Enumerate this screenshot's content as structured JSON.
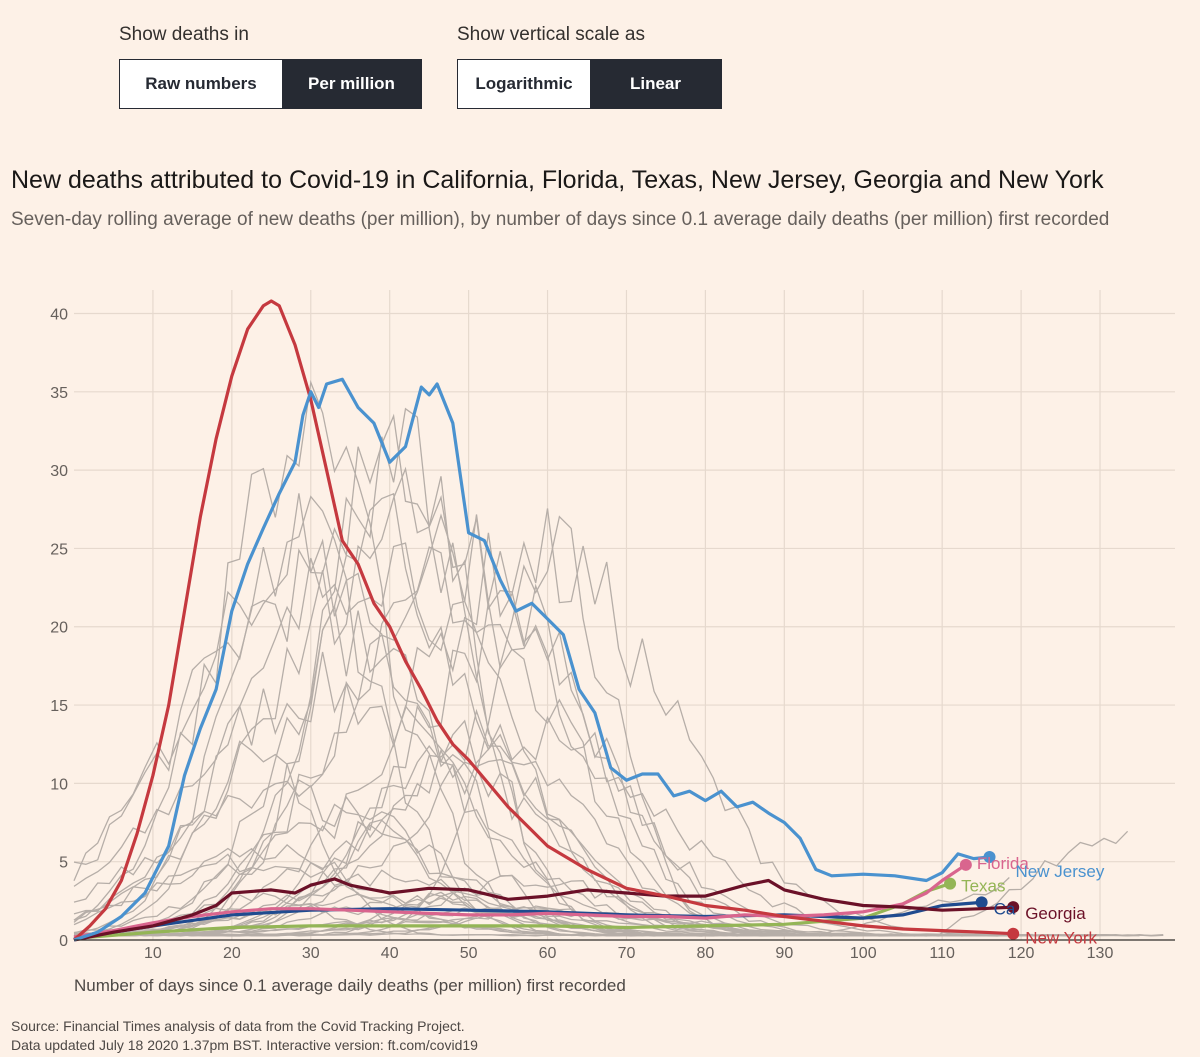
{
  "controls": {
    "deaths_label": "Show deaths in",
    "deaths_options": [
      "Raw numbers",
      "Per million"
    ],
    "deaths_selected": "Per million",
    "scale_label": "Show vertical scale as",
    "scale_options": [
      "Logarithmic",
      "Linear"
    ],
    "scale_selected": "Linear"
  },
  "title": "New deaths attributed to Covid-19 in California, Florida, Texas, New Jersey, Georgia and New York",
  "subtitle": "Seven-day rolling average of new deaths (per million), by number of days since 0.1 average daily deaths (per million) first recorded",
  "source_line1": "Source: Financial Times analysis of data from the Covid Tracking Project.",
  "source_line2": "Data updated July 18 2020 1.37pm BST. Interactive version: ft.com/covid19",
  "chart_data": {
    "type": "line",
    "xlabel": "Number of days since 0.1 average daily deaths (per million) first recorded",
    "ylabel": "",
    "xlim": [
      0,
      140
    ],
    "ylim": [
      0,
      41
    ],
    "xticks": [
      10,
      20,
      30,
      40,
      50,
      60,
      70,
      80,
      90,
      100,
      110,
      120,
      130
    ],
    "yticks": [
      0,
      5,
      10,
      15,
      20,
      25,
      30,
      35,
      40
    ],
    "grid": true,
    "colors": {
      "New York": "#c5393f",
      "New Jersey": "#4a92cf",
      "Florida": "#d9658e",
      "Texas": "#94b556",
      "California": "#1f4b8f",
      "Georgia": "#6b1128",
      "other": "#b6aea8"
    },
    "series": [
      {
        "name": "New York",
        "x": [
          0,
          2,
          4,
          6,
          8,
          10,
          12,
          14,
          16,
          18,
          20,
          22,
          24,
          25,
          26,
          28,
          30,
          32,
          34,
          36,
          38,
          40,
          42,
          44,
          46,
          48,
          50,
          55,
          60,
          65,
          70,
          75,
          80,
          85,
          90,
          95,
          100,
          105,
          110,
          115,
          119
        ],
        "y": [
          0,
          0.9,
          2,
          3.8,
          6.8,
          10.5,
          15,
          21,
          27,
          32,
          36,
          39,
          40.5,
          40.8,
          40.5,
          38,
          34.5,
          30,
          25.5,
          24,
          21.5,
          20,
          17.8,
          16,
          14,
          12.5,
          11.5,
          8.5,
          6,
          4.5,
          3.3,
          2.8,
          2.2,
          1.9,
          1.5,
          1.2,
          0.9,
          0.7,
          0.6,
          0.5,
          0.4
        ]
      },
      {
        "name": "New Jersey",
        "x": [
          0,
          3,
          6,
          9,
          12,
          14,
          16,
          18,
          20,
          22,
          24,
          26,
          28,
          29,
          30,
          31,
          32,
          34,
          36,
          38,
          40,
          42,
          44,
          45,
          46,
          48,
          50,
          52,
          54,
          56,
          58,
          60,
          62,
          64,
          66,
          68,
          70,
          72,
          74,
          76,
          78,
          80,
          82,
          84,
          86,
          88,
          90,
          92,
          94,
          96,
          100,
          104,
          108,
          110,
          112,
          114,
          116
        ],
        "y": [
          0,
          0.5,
          1.5,
          3,
          6,
          10.5,
          13.5,
          16,
          21,
          24,
          26.3,
          28.5,
          30.5,
          33.5,
          35,
          34,
          35.5,
          35.8,
          34,
          33,
          30.5,
          31.5,
          35.3,
          34.8,
          35.5,
          33,
          26,
          25.5,
          23,
          21,
          21.5,
          20.5,
          19.5,
          16,
          14.5,
          11,
          10.2,
          10.6,
          10.6,
          9.2,
          9.5,
          8.9,
          9.5,
          8.5,
          8.8,
          8.1,
          7.5,
          6.5,
          4.5,
          4.1,
          4.2,
          4.1,
          3.8,
          4.3,
          5.5,
          5.2,
          5.3
        ]
      },
      {
        "name": "Florida",
        "x": [
          0,
          5,
          10,
          15,
          20,
          25,
          30,
          35,
          40,
          45,
          50,
          55,
          60,
          65,
          70,
          75,
          80,
          85,
          90,
          95,
          100,
          105,
          108,
          110,
          113
        ],
        "y": [
          0.2,
          0.6,
          1.1,
          1.5,
          1.8,
          2,
          2,
          1.9,
          1.8,
          1.7,
          1.6,
          1.6,
          1.7,
          1.6,
          1.5,
          1.5,
          1.4,
          1.6,
          1.5,
          1.6,
          1.8,
          2.3,
          3,
          3.8,
          4.8
        ]
      },
      {
        "name": "Texas",
        "x": [
          0,
          10,
          20,
          30,
          40,
          50,
          60,
          70,
          80,
          90,
          100,
          105,
          108,
          111
        ],
        "y": [
          0.1,
          0.5,
          0.8,
          0.9,
          0.9,
          0.9,
          0.9,
          0.8,
          0.9,
          1,
          1.4,
          2.3,
          3.1,
          3.6
        ]
      },
      {
        "name": "California",
        "x": [
          0,
          10,
          20,
          30,
          40,
          50,
          60,
          70,
          80,
          90,
          100,
          105,
          110,
          115
        ],
        "y": [
          0.1,
          0.9,
          1.6,
          1.9,
          2,
          1.9,
          1.8,
          1.6,
          1.5,
          1.6,
          1.4,
          1.6,
          2.2,
          2.4
        ]
      },
      {
        "name": "Georgia",
        "x": [
          0,
          5,
          10,
          15,
          18,
          20,
          25,
          28,
          30,
          33,
          35,
          38,
          40,
          45,
          50,
          55,
          60,
          65,
          70,
          75,
          80,
          85,
          88,
          90,
          95,
          100,
          105,
          110,
          115,
          119
        ],
        "y": [
          0,
          0.5,
          0.9,
          1.6,
          2.2,
          3,
          3.2,
          3,
          3.5,
          3.9,
          3.5,
          3.2,
          3,
          3.3,
          3.2,
          2.6,
          2.8,
          3.2,
          3,
          2.8,
          2.8,
          3.5,
          3.8,
          3.2,
          2.6,
          2.2,
          2.1,
          1.9,
          2,
          2.1
        ]
      }
    ],
    "labels": [
      "Florida",
      "Texas",
      "New Jersey",
      "Ca",
      "Georgia",
      "New York"
    ]
  }
}
